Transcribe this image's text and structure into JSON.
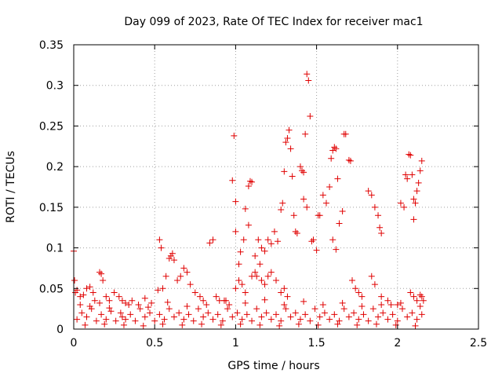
{
  "chart_data": {
    "type": "scatter",
    "title": "Day 099 of 2023, Rate Of TEC Index for receiver mac1",
    "xlabel": "GPS time / hours",
    "ylabel": "ROTI / TECUs",
    "xlim": [
      0,
      2.5
    ],
    "ylim": [
      0,
      0.35
    ],
    "x_ticks": [
      "0",
      "0.5",
      "1",
      "1.5",
      "2",
      "2.5"
    ],
    "y_ticks": [
      "0",
      "0.05",
      "0.1",
      "0.15",
      "0.2",
      "0.25",
      "0.3",
      "0.35"
    ],
    "grid": true,
    "marker": "+",
    "marker_color": "#e00000",
    "series": [
      {
        "points": [
          [
            0.0,
            0.096
          ],
          [
            0.005,
            0.06
          ],
          [
            0.01,
            0.045
          ],
          [
            0.02,
            0.048
          ],
          [
            0.04,
            0.04
          ],
          [
            0.06,
            0.042
          ],
          [
            0.08,
            0.05
          ],
          [
            0.1,
            0.052
          ],
          [
            0.12,
            0.045
          ],
          [
            0.13,
            0.035
          ],
          [
            0.16,
            0.07
          ],
          [
            0.17,
            0.068
          ],
          [
            0.18,
            0.06
          ],
          [
            0.2,
            0.04
          ],
          [
            0.22,
            0.035
          ],
          [
            0.25,
            0.045
          ],
          [
            0.28,
            0.04
          ],
          [
            0.3,
            0.035
          ],
          [
            0.32,
            0.032
          ],
          [
            0.36,
            0.035
          ],
          [
            0.4,
            0.03
          ],
          [
            0.44,
            0.038
          ],
          [
            0.48,
            0.032
          ],
          [
            0.53,
            0.11
          ],
          [
            0.54,
            0.1
          ],
          [
            0.52,
            0.048
          ],
          [
            0.55,
            0.05
          ],
          [
            0.57,
            0.065
          ],
          [
            0.59,
            0.087
          ],
          [
            0.6,
            0.09
          ],
          [
            0.61,
            0.093
          ],
          [
            0.62,
            0.085
          ],
          [
            0.64,
            0.06
          ],
          [
            0.66,
            0.065
          ],
          [
            0.68,
            0.075
          ],
          [
            0.7,
            0.07
          ],
          [
            0.72,
            0.055
          ],
          [
            0.75,
            0.045
          ],
          [
            0.78,
            0.04
          ],
          [
            0.8,
            0.035
          ],
          [
            0.84,
            0.106
          ],
          [
            0.86,
            0.11
          ],
          [
            0.88,
            0.04
          ],
          [
            0.9,
            0.035
          ],
          [
            0.93,
            0.035
          ],
          [
            0.96,
            0.03
          ],
          [
            0.98,
            0.183
          ],
          [
            0.99,
            0.238
          ],
          [
            1.0,
            0.157
          ],
          [
            1.0,
            0.12
          ],
          [
            1.02,
            0.08
          ],
          [
            1.03,
            0.095
          ],
          [
            1.05,
            0.11
          ],
          [
            1.06,
            0.148
          ],
          [
            1.08,
            0.176
          ],
          [
            1.09,
            0.182
          ],
          [
            1.1,
            0.181
          ],
          [
            1.08,
            0.128
          ],
          [
            1.12,
            0.09
          ],
          [
            1.14,
            0.11
          ],
          [
            1.13,
            0.065
          ],
          [
            1.15,
            0.08
          ],
          [
            1.16,
            0.1
          ],
          [
            1.18,
            0.096
          ],
          [
            1.2,
            0.11
          ],
          [
            1.22,
            0.105
          ],
          [
            1.24,
            0.12
          ],
          [
            1.26,
            0.108
          ],
          [
            1.28,
            0.147
          ],
          [
            1.29,
            0.155
          ],
          [
            1.3,
            0.194
          ],
          [
            1.31,
            0.23
          ],
          [
            1.32,
            0.235
          ],
          [
            1.33,
            0.245
          ],
          [
            1.34,
            0.222
          ],
          [
            1.35,
            0.188
          ],
          [
            1.36,
            0.14
          ],
          [
            1.37,
            0.12
          ],
          [
            1.38,
            0.118
          ],
          [
            1.4,
            0.2
          ],
          [
            1.41,
            0.195
          ],
          [
            1.42,
            0.193
          ],
          [
            1.43,
            0.24
          ],
          [
            1.44,
            0.314
          ],
          [
            1.45,
            0.306
          ],
          [
            1.46,
            0.262
          ],
          [
            1.42,
            0.16
          ],
          [
            1.44,
            0.15
          ],
          [
            1.47,
            0.108
          ],
          [
            1.48,
            0.11
          ],
          [
            1.5,
            0.097
          ],
          [
            1.51,
            0.14
          ],
          [
            1.52,
            0.14
          ],
          [
            1.54,
            0.165
          ],
          [
            1.56,
            0.155
          ],
          [
            1.58,
            0.175
          ],
          [
            1.59,
            0.21
          ],
          [
            1.6,
            0.22
          ],
          [
            1.61,
            0.224
          ],
          [
            1.62,
            0.222
          ],
          [
            1.6,
            0.11
          ],
          [
            1.62,
            0.098
          ],
          [
            1.63,
            0.185
          ],
          [
            1.64,
            0.13
          ],
          [
            1.66,
            0.145
          ],
          [
            1.67,
            0.24
          ],
          [
            1.68,
            0.24
          ],
          [
            1.7,
            0.208
          ],
          [
            1.71,
            0.207
          ],
          [
            1.72,
            0.06
          ],
          [
            1.74,
            0.05
          ],
          [
            1.76,
            0.045
          ],
          [
            1.78,
            0.04
          ],
          [
            1.82,
            0.17
          ],
          [
            1.84,
            0.165
          ],
          [
            1.86,
            0.15
          ],
          [
            1.88,
            0.14
          ],
          [
            1.89,
            0.125
          ],
          [
            1.9,
            0.118
          ],
          [
            1.84,
            0.065
          ],
          [
            1.86,
            0.055
          ],
          [
            1.9,
            0.04
          ],
          [
            1.94,
            0.035
          ],
          [
            1.96,
            0.03
          ],
          [
            2.0,
            0.03
          ],
          [
            2.02,
            0.155
          ],
          [
            2.04,
            0.15
          ],
          [
            2.05,
            0.19
          ],
          [
            2.06,
            0.185
          ],
          [
            2.07,
            0.215
          ],
          [
            2.08,
            0.214
          ],
          [
            2.09,
            0.19
          ],
          [
            2.1,
            0.16
          ],
          [
            2.11,
            0.155
          ],
          [
            2.12,
            0.17
          ],
          [
            2.13,
            0.18
          ],
          [
            2.14,
            0.195
          ],
          [
            2.15,
            0.207
          ],
          [
            2.1,
            0.135
          ],
          [
            2.08,
            0.045
          ],
          [
            2.1,
            0.04
          ],
          [
            2.12,
            0.035
          ],
          [
            2.14,
            0.042
          ],
          [
            2.15,
            0.04
          ],
          [
            2.16,
            0.035
          ],
          [
            1.0,
            0.05
          ],
          [
            1.02,
            0.06
          ],
          [
            1.04,
            0.055
          ],
          [
            1.06,
            0.045
          ],
          [
            1.1,
            0.065
          ],
          [
            1.12,
            0.07
          ],
          [
            1.16,
            0.06
          ],
          [
            1.18,
            0.055
          ],
          [
            1.2,
            0.065
          ],
          [
            1.22,
            0.07
          ],
          [
            1.25,
            0.06
          ],
          [
            1.28,
            0.045
          ],
          [
            1.3,
            0.05
          ],
          [
            1.32,
            0.04
          ],
          [
            0.3,
            0.015
          ],
          [
            0.02,
            0.012
          ],
          [
            0.05,
            0.02
          ],
          [
            0.08,
            0.015
          ],
          [
            0.11,
            0.025
          ],
          [
            0.14,
            0.01
          ],
          [
            0.17,
            0.018
          ],
          [
            0.2,
            0.012
          ],
          [
            0.23,
            0.022
          ],
          [
            0.26,
            0.01
          ],
          [
            0.29,
            0.02
          ],
          [
            0.32,
            0.012
          ],
          [
            0.35,
            0.018
          ],
          [
            0.38,
            0.01
          ],
          [
            0.41,
            0.025
          ],
          [
            0.44,
            0.015
          ],
          [
            0.47,
            0.02
          ],
          [
            0.5,
            0.01
          ],
          [
            0.53,
            0.018
          ],
          [
            0.56,
            0.012
          ],
          [
            0.59,
            0.025
          ],
          [
            0.62,
            0.015
          ],
          [
            0.65,
            0.02
          ],
          [
            0.68,
            0.012
          ],
          [
            0.71,
            0.018
          ],
          [
            0.74,
            0.01
          ],
          [
            0.77,
            0.025
          ],
          [
            0.8,
            0.015
          ],
          [
            0.83,
            0.02
          ],
          [
            0.86,
            0.012
          ],
          [
            0.89,
            0.018
          ],
          [
            0.92,
            0.01
          ],
          [
            0.95,
            0.025
          ],
          [
            0.98,
            0.015
          ],
          [
            1.01,
            0.02
          ],
          [
            1.04,
            0.012
          ],
          [
            1.07,
            0.018
          ],
          [
            1.1,
            0.01
          ],
          [
            1.13,
            0.025
          ],
          [
            1.16,
            0.015
          ],
          [
            1.19,
            0.02
          ],
          [
            1.22,
            0.012
          ],
          [
            1.25,
            0.018
          ],
          [
            1.28,
            0.01
          ],
          [
            1.31,
            0.025
          ],
          [
            1.34,
            0.015
          ],
          [
            1.37,
            0.02
          ],
          [
            1.4,
            0.012
          ],
          [
            1.43,
            0.018
          ],
          [
            1.46,
            0.01
          ],
          [
            1.49,
            0.025
          ],
          [
            1.52,
            0.015
          ],
          [
            1.55,
            0.02
          ],
          [
            1.58,
            0.012
          ],
          [
            1.61,
            0.018
          ],
          [
            1.64,
            0.01
          ],
          [
            1.67,
            0.025
          ],
          [
            1.7,
            0.015
          ],
          [
            1.73,
            0.02
          ],
          [
            1.76,
            0.012
          ],
          [
            1.79,
            0.018
          ],
          [
            1.82,
            0.01
          ],
          [
            1.85,
            0.025
          ],
          [
            1.88,
            0.015
          ],
          [
            1.91,
            0.02
          ],
          [
            1.94,
            0.012
          ],
          [
            1.97,
            0.018
          ],
          [
            2.0,
            0.01
          ],
          [
            2.03,
            0.025
          ],
          [
            2.06,
            0.015
          ],
          [
            2.09,
            0.02
          ],
          [
            2.12,
            0.012
          ],
          [
            2.15,
            0.018
          ],
          [
            0.04,
            0.03
          ],
          [
            0.1,
            0.028
          ],
          [
            0.16,
            0.032
          ],
          [
            0.22,
            0.026
          ],
          [
            0.34,
            0.03
          ],
          [
            0.46,
            0.027
          ],
          [
            0.58,
            0.033
          ],
          [
            0.7,
            0.028
          ],
          [
            0.82,
            0.03
          ],
          [
            0.94,
            0.035
          ],
          [
            1.06,
            0.032
          ],
          [
            1.18,
            0.036
          ],
          [
            1.3,
            0.03
          ],
          [
            1.42,
            0.034
          ],
          [
            1.54,
            0.03
          ],
          [
            1.66,
            0.032
          ],
          [
            1.78,
            0.028
          ],
          [
            1.9,
            0.03
          ],
          [
            2.02,
            0.032
          ],
          [
            2.14,
            0.028
          ],
          [
            0.07,
            0.005
          ],
          [
            0.19,
            0.006
          ],
          [
            0.31,
            0.005
          ],
          [
            0.43,
            0.004
          ],
          [
            0.55,
            0.006
          ],
          [
            0.67,
            0.005
          ],
          [
            0.79,
            0.006
          ],
          [
            0.91,
            0.005
          ],
          [
            1.03,
            0.006
          ],
          [
            1.15,
            0.005
          ],
          [
            1.27,
            0.004
          ],
          [
            1.39,
            0.006
          ],
          [
            1.51,
            0.005
          ],
          [
            1.63,
            0.006
          ],
          [
            1.75,
            0.005
          ],
          [
            1.87,
            0.006
          ],
          [
            1.99,
            0.005
          ],
          [
            2.11,
            0.004
          ]
        ]
      }
    ]
  }
}
